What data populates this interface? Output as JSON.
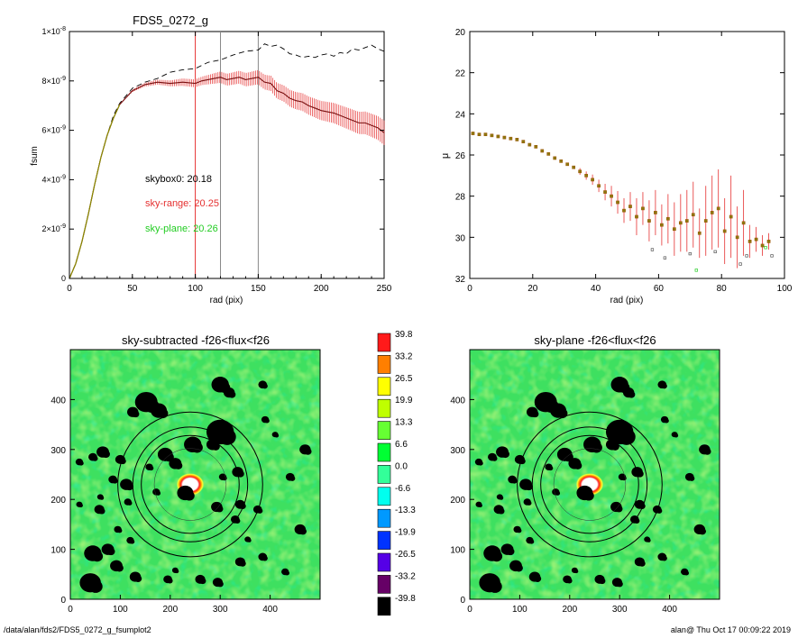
{
  "footer": {
    "left": "/data/alan/fds2/FDS5_0272_g_fsumplot2",
    "right": "alan@  Thu Oct 17 00:09:22 2019"
  },
  "chart_data": [
    {
      "type": "line",
      "title": "FDS5_0272_g",
      "xlabel": "rad (pix)",
      "ylabel": "fsum",
      "xlim": [
        0,
        250
      ],
      "ylim": [
        0,
        1e-08
      ],
      "x_ticks": [
        0,
        50,
        100,
        150,
        200,
        250
      ],
      "y_ticks": [
        {
          "value": 0,
          "base": "0",
          "exp": ""
        },
        {
          "value": 2e-09,
          "base": "2×10",
          "exp": "-9"
        },
        {
          "value": 4e-09,
          "base": "4×10",
          "exp": "-9"
        },
        {
          "value": 6e-09,
          "base": "6×10",
          "exp": "-9"
        },
        {
          "value": 8e-09,
          "base": "8×10",
          "exp": "-9"
        },
        {
          "value": 1e-08,
          "base": "1×10",
          "exp": "-8"
        }
      ],
      "vlines": [
        {
          "x": 100,
          "color": "#e53030"
        },
        {
          "x": 120,
          "color": "#888888"
        },
        {
          "x": 150,
          "color": "#888888"
        }
      ],
      "annotations": [
        {
          "text": "skybox0: 20.18",
          "color": "#000000"
        },
        {
          "text": "sky-range: 20.25",
          "color": "#e53030"
        },
        {
          "text": "sky-plane: 20.26",
          "color": "#22cc22"
        }
      ],
      "series": [
        {
          "style": "dashed",
          "color": "#000000",
          "x": [
            0,
            5,
            10,
            15,
            20,
            25,
            30,
            35,
            40,
            50,
            60,
            70,
            80,
            90,
            100,
            110,
            120,
            130,
            140,
            150,
            155,
            160,
            165,
            170,
            175,
            180,
            185,
            190,
            195,
            200,
            205,
            210,
            215,
            220,
            225,
            230,
            235,
            240,
            245,
            250
          ],
          "y": [
            0,
            6e-10,
            1.5e-09,
            2.6e-09,
            3.8e-09,
            4.9e-09,
            5.8e-09,
            6.6e-09,
            7.1e-09,
            7.7e-09,
            7.95e-09,
            8.1e-09,
            8.35e-09,
            8.45e-09,
            8.5e-09,
            8.75e-09,
            8.85e-09,
            9.05e-09,
            9.2e-09,
            9.25e-09,
            9.5e-09,
            9.4e-09,
            9.45e-09,
            9.3e-09,
            9.1e-09,
            9.05e-09,
            8.95e-09,
            9e-09,
            8.95e-09,
            9.05e-09,
            9.1e-09,
            9e-09,
            9.15e-09,
            9.1e-09,
            9.3e-09,
            9.25e-09,
            9.35e-09,
            9.45e-09,
            9.3e-09,
            9.2e-09
          ]
        },
        {
          "style": "errorbars",
          "color": "#e53030",
          "line_color": "#7a1010",
          "x": [
            0,
            5,
            10,
            15,
            20,
            25,
            30,
            35,
            40,
            50,
            60,
            70,
            80,
            90,
            100,
            105,
            110,
            115,
            120,
            125,
            130,
            135,
            140,
            145,
            150,
            155,
            160,
            165,
            170,
            175,
            180,
            185,
            190,
            195,
            200,
            205,
            210,
            215,
            220,
            225,
            230,
            235,
            240,
            245,
            250
          ],
          "y": [
            0,
            6e-10,
            1.5e-09,
            2.6e-09,
            3.8e-09,
            4.9e-09,
            5.8e-09,
            6.5e-09,
            7.05e-09,
            7.6e-09,
            7.85e-09,
            7.95e-09,
            7.9e-09,
            7.95e-09,
            7.9e-09,
            8e-09,
            8.05e-09,
            8.1e-09,
            8.15e-09,
            8.05e-09,
            8.1e-09,
            8.15e-09,
            8.05e-09,
            8.1e-09,
            8.15e-09,
            7.95e-09,
            7.9e-09,
            7.6e-09,
            7.5e-09,
            7.3e-09,
            7.2e-09,
            7.15e-09,
            7e-09,
            6.9e-09,
            6.8e-09,
            6.75e-09,
            6.7e-09,
            6.6e-09,
            6.5e-09,
            6.4e-09,
            6.3e-09,
            6.3e-09,
            6.2e-09,
            6.1e-09,
            5.9e-09
          ],
          "err": [
            0,
            0,
            0,
            0,
            0,
            0,
            0,
            0,
            0,
            5e-11,
            8e-11,
            1e-10,
            1.2e-10,
            1.5e-10,
            1.6e-10,
            1.7e-10,
            1.9e-10,
            2.1e-10,
            2.3e-10,
            2.4e-10,
            2.5e-10,
            2.6e-10,
            2.7e-10,
            2.8e-10,
            2.9e-10,
            3e-10,
            3.1e-10,
            3.2e-10,
            3.3e-10,
            3.4e-10,
            3.5e-10,
            3.6e-10,
            3.7e-10,
            3.8e-10,
            3.9e-10,
            4e-10,
            4.1e-10,
            4.2e-10,
            4.3e-10,
            4.4e-10,
            4.5e-10,
            4.6e-10,
            4.7e-10,
            4.8e-10,
            5e-10
          ]
        }
      ]
    },
    {
      "type": "scatter",
      "title": "",
      "xlabel": "rad (pix)",
      "ylabel": "μ",
      "xlim": [
        0,
        100
      ],
      "ylim": [
        32,
        20
      ],
      "x_ticks": [
        0,
        20,
        40,
        60,
        80,
        100
      ],
      "y_ticks": [
        20,
        22,
        24,
        26,
        28,
        30,
        32
      ],
      "profile": {
        "r": [
          1,
          3,
          5,
          7,
          9,
          11,
          13,
          15,
          17,
          19,
          21,
          23,
          25,
          27,
          29,
          31,
          33,
          35,
          37,
          39,
          41,
          43,
          45,
          47,
          49,
          51,
          53,
          55,
          57,
          59,
          61,
          63,
          65,
          67,
          69,
          71,
          73,
          75,
          77,
          79,
          81,
          83,
          85,
          87,
          89,
          91,
          93,
          95
        ],
        "mu": [
          24.95,
          25.0,
          25.0,
          25.05,
          25.1,
          25.15,
          25.2,
          25.25,
          25.35,
          25.5,
          25.6,
          25.8,
          25.95,
          26.15,
          26.3,
          26.45,
          26.6,
          26.8,
          27.0,
          27.2,
          27.5,
          27.8,
          28.0,
          28.3,
          28.7,
          28.5,
          29.0,
          28.6,
          29.2,
          28.8,
          29.4,
          29.1,
          29.6,
          29.3,
          29.2,
          28.9,
          29.8,
          29.2,
          28.8,
          28.6,
          29.7,
          29.0,
          30.0,
          29.3,
          30.2,
          30.1,
          30.4,
          30.2
        ],
        "err": [
          0.02,
          0.02,
          0.03,
          0.03,
          0.03,
          0.04,
          0.04,
          0.05,
          0.05,
          0.06,
          0.06,
          0.07,
          0.08,
          0.09,
          0.1,
          0.12,
          0.14,
          0.16,
          0.2,
          0.25,
          0.3,
          0.4,
          0.5,
          0.55,
          0.6,
          0.7,
          0.9,
          0.8,
          1.0,
          1.1,
          1.0,
          1.2,
          1.3,
          1.4,
          1.5,
          1.6,
          1.2,
          1.7,
          1.8,
          1.9,
          1.6,
          2.0,
          1.5,
          1.6,
          0.8,
          0.6,
          0.5,
          0.4
        ],
        "outliers": [
          {
            "r": 58,
            "mu": 30.6,
            "color": "#555555"
          },
          {
            "r": 62,
            "mu": 31.0,
            "color": "#555555"
          },
          {
            "r": 70,
            "mu": 30.8,
            "color": "#555555"
          },
          {
            "r": 72,
            "mu": 31.6,
            "color": "#22cc22"
          },
          {
            "r": 78,
            "mu": 30.7,
            "color": "#555555"
          },
          {
            "r": 86,
            "mu": 31.3,
            "color": "#555555"
          },
          {
            "r": 88,
            "mu": 30.9,
            "color": "#555555"
          },
          {
            "r": 94,
            "mu": 30.5,
            "color": "#22cc22"
          },
          {
            "r": 96,
            "mu": 30.9,
            "color": "#555555"
          }
        ]
      }
    },
    {
      "type": "heatmap",
      "title": "sky-subtracted -f26<flux<f26",
      "xlim": [
        0,
        500
      ],
      "ylim": [
        0,
        500
      ],
      "x_ticks": [
        0,
        100,
        200,
        300,
        400
      ],
      "y_ticks": [
        0,
        100,
        200,
        300,
        400
      ],
      "center": [
        240,
        230
      ],
      "circle_radii": [
        72,
        98,
        115,
        145
      ],
      "masks": [
        [
          300,
          430,
          14
        ],
        [
          318,
          414,
          9
        ],
        [
          152,
          395,
          18
        ],
        [
          177,
          378,
          13
        ],
        [
          125,
          375,
          9
        ],
        [
          300,
          335,
          22
        ],
        [
          285,
          310,
          10
        ],
        [
          245,
          310,
          14
        ],
        [
          190,
          290,
          12
        ],
        [
          210,
          272,
          10
        ],
        [
          100,
          280,
          8
        ],
        [
          65,
          295,
          10
        ],
        [
          45,
          285,
          7
        ],
        [
          335,
          255,
          9
        ],
        [
          85,
          240,
          7
        ],
        [
          112,
          230,
          10
        ],
        [
          115,
          195,
          6
        ],
        [
          230,
          213,
          13
        ],
        [
          293,
          185,
          9
        ],
        [
          340,
          190,
          8
        ],
        [
          375,
          180,
          7
        ],
        [
          330,
          160,
          7
        ],
        [
          58,
          180,
          8
        ],
        [
          95,
          140,
          6
        ],
        [
          120,
          118,
          6
        ],
        [
          75,
          100,
          10
        ],
        [
          45,
          92,
          14
        ],
        [
          92,
          67,
          10
        ],
        [
          40,
          33,
          17
        ],
        [
          130,
          45,
          9
        ],
        [
          195,
          40,
          7
        ],
        [
          210,
          58,
          5
        ],
        [
          260,
          40,
          8
        ],
        [
          295,
          34,
          8
        ],
        [
          340,
          75,
          8
        ],
        [
          385,
          85,
          7
        ],
        [
          430,
          55,
          6
        ],
        [
          460,
          140,
          9
        ],
        [
          440,
          245,
          7
        ],
        [
          470,
          300,
          9
        ],
        [
          385,
          430,
          7
        ],
        [
          390,
          360,
          6
        ],
        [
          410,
          330,
          5
        ],
        [
          18,
          275,
          6
        ],
        [
          18,
          190,
          5
        ],
        [
          60,
          205,
          5
        ],
        [
          158,
          265,
          6
        ],
        [
          172,
          215,
          6
        ],
        [
          305,
          245,
          6
        ],
        [
          355,
          120,
          5
        ]
      ],
      "colorbar": {
        "labels": [
          "39.8",
          "33.2",
          "26.5",
          "19.9",
          "13.3",
          "6.6",
          "0.0",
          "-6.6",
          "-13.3",
          "-19.9",
          "-26.5",
          "-33.2",
          "-39.8"
        ],
        "colors": [
          "#ff1a1a",
          "#ff7f00",
          "#ffff00",
          "#bfff00",
          "#66ff33",
          "#00ff33",
          "#33ff99",
          "#00ffee",
          "#0099ff",
          "#0033ff",
          "#5500e6",
          "#660066",
          "#000000"
        ]
      }
    },
    {
      "type": "heatmap",
      "title": "sky-plane -f26<flux<f26",
      "xlim": [
        0,
        500
      ],
      "ylim": [
        0,
        500
      ],
      "x_ticks": [
        0,
        100,
        200,
        300,
        400
      ],
      "y_ticks": [
        0,
        100,
        200,
        300,
        400
      ]
    }
  ]
}
